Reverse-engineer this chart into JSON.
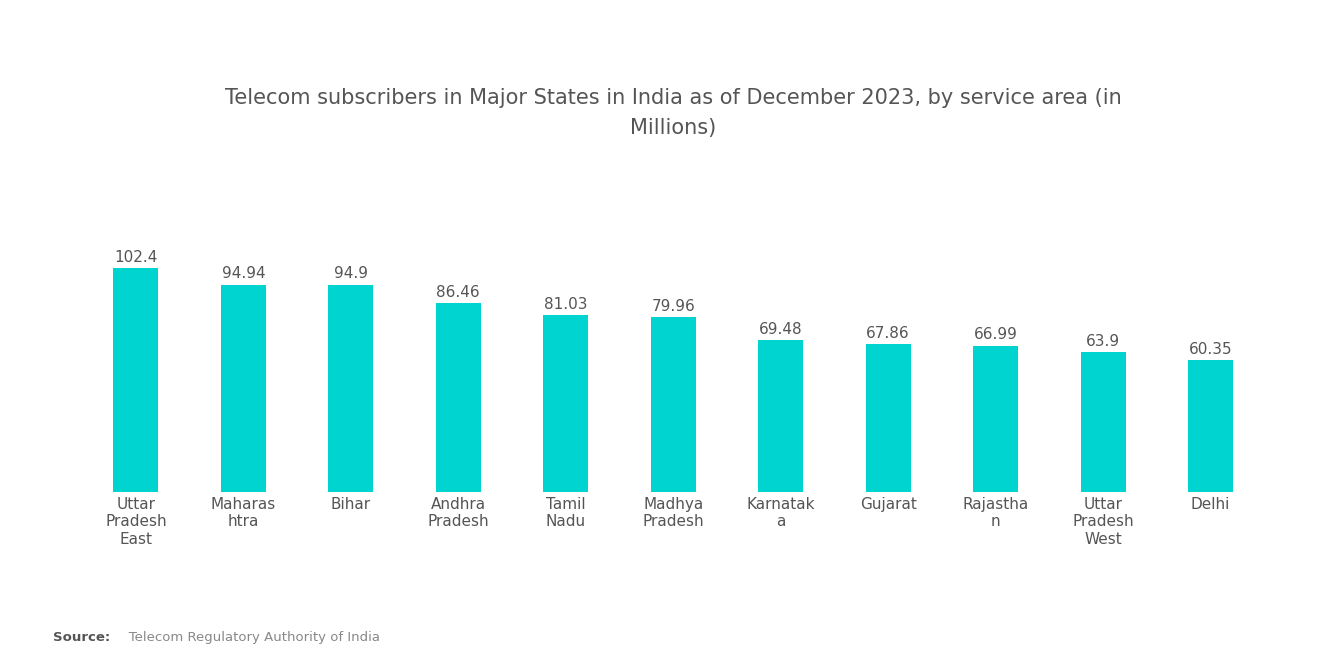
{
  "title": "Telecom subscribers in Major States in India as of December 2023, by service area (in\nMillions)",
  "categories": [
    "Uttar\nPradesh\nEast",
    "Maharas\nhtra",
    "Bihar",
    "Andhra\nPradesh",
    "Tamil\nNadu",
    "Madhya\nPradesh",
    "Karnatak\na",
    "Gujarat",
    "Rajastha\nn",
    "Uttar\nPradesh\nWest",
    "Delhi"
  ],
  "values": [
    102.4,
    94.94,
    94.9,
    86.46,
    81.03,
    79.96,
    69.48,
    67.86,
    66.99,
    63.9,
    60.35
  ],
  "bar_color": "#00D4D0",
  "title_fontsize": 15,
  "value_fontsize": 11,
  "tick_fontsize": 11,
  "source_bold": "Source:",
  "source_normal": "   Telecom Regulatory Authority of India",
  "background_color": "#ffffff",
  "ylim": [
    0,
    140
  ]
}
